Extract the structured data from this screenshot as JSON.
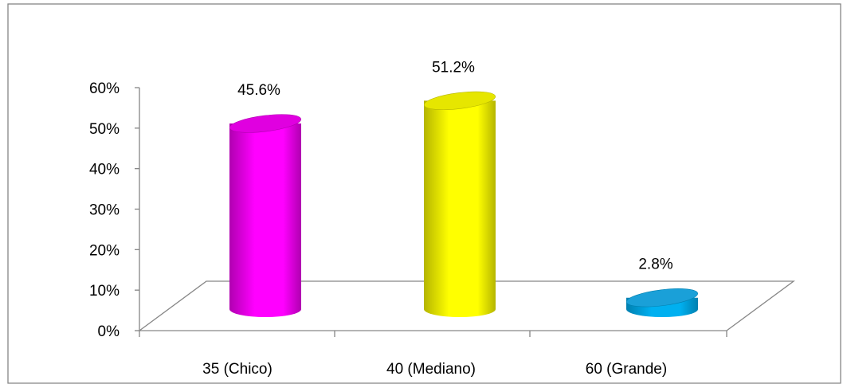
{
  "chart_data": {
    "type": "bar",
    "categories": [
      "35 (Chico)",
      "40 (Mediano)",
      "60 (Grande)"
    ],
    "values": [
      45.6,
      51.2,
      2.8
    ],
    "data_labels": [
      "45.6%",
      "51.2%",
      "2.8%"
    ],
    "title": "",
    "xlabel": "",
    "ylabel": "",
    "ylim": [
      0,
      60
    ],
    "y_ticks": [
      0,
      10,
      20,
      30,
      40,
      50,
      60
    ],
    "y_tick_labels": [
      "0%",
      "10%",
      "20%",
      "30%",
      "40%",
      "50%",
      "60%"
    ],
    "grid": false,
    "legend": "none",
    "style": "3d-cylinder",
    "colors": [
      "#ff00ff",
      "#ffff00",
      "#00b0f0"
    ],
    "side_colors": [
      "#b000b0",
      "#b5b500",
      "#0080b0"
    ],
    "top_colors": [
      "#e000e0",
      "#e6e600",
      "#1aa0d8"
    ]
  }
}
